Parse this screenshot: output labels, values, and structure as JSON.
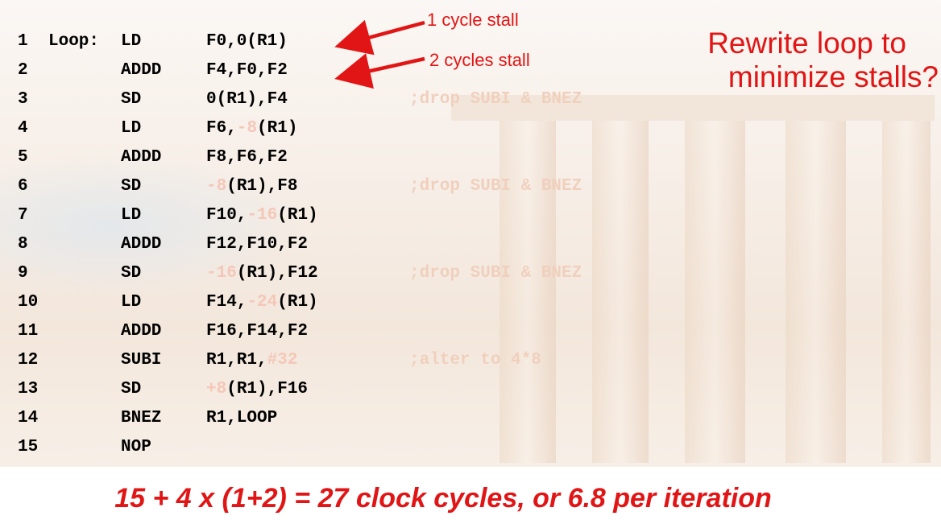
{
  "code_lines": [
    {
      "num": "1",
      "label": "Loop:",
      "op": "LD",
      "arg": [
        {
          "t": "F0,0(R1)",
          "faded": false
        }
      ],
      "comment": ""
    },
    {
      "num": "2",
      "label": "",
      "op": "ADDD",
      "arg": [
        {
          "t": "F4,F0,F2",
          "faded": false
        }
      ],
      "comment": ""
    },
    {
      "num": "3",
      "label": "",
      "op": "SD",
      "arg": [
        {
          "t": "0(R1),F4",
          "faded": false
        }
      ],
      "comment": ";drop SUBI & BNEZ"
    },
    {
      "num": "4",
      "label": "",
      "op": "LD",
      "arg": [
        {
          "t": "F6,",
          "faded": false
        },
        {
          "t": "-8",
          "faded": true
        },
        {
          "t": "(R1)",
          "faded": false
        }
      ],
      "comment": ""
    },
    {
      "num": "5",
      "label": "",
      "op": "ADDD",
      "arg": [
        {
          "t": "F8,F6,F2",
          "faded": false
        }
      ],
      "comment": ""
    },
    {
      "num": "6",
      "label": "",
      "op": "SD",
      "arg": [
        {
          "t": "-8",
          "faded": true
        },
        {
          "t": "(R1),F8",
          "faded": false
        }
      ],
      "comment": ";drop SUBI & BNEZ"
    },
    {
      "num": "7",
      "label": "",
      "op": "LD",
      "arg": [
        {
          "t": "F10,",
          "faded": false
        },
        {
          "t": "-16",
          "faded": true
        },
        {
          "t": "(R1)",
          "faded": false
        }
      ],
      "comment": ""
    },
    {
      "num": "8",
      "label": "",
      "op": "ADDD",
      "arg": [
        {
          "t": "F12,F10,F2",
          "faded": false
        }
      ],
      "comment": ""
    },
    {
      "num": "9",
      "label": "",
      "op": "SD",
      "arg": [
        {
          "t": "-16",
          "faded": true
        },
        {
          "t": "(R1),F12",
          "faded": false
        }
      ],
      "comment": ";drop SUBI & BNEZ"
    },
    {
      "num": "10",
      "label": "",
      "op": "LD",
      "arg": [
        {
          "t": "F14,",
          "faded": false
        },
        {
          "t": "-24",
          "faded": true
        },
        {
          "t": "(R1)",
          "faded": false
        }
      ],
      "comment": ""
    },
    {
      "num": "11",
      "label": "",
      "op": "ADDD",
      "arg": [
        {
          "t": "F16,F14,F2",
          "faded": false
        }
      ],
      "comment": ""
    },
    {
      "num": "12",
      "label": "",
      "op": "SUBI",
      "arg": [
        {
          "t": "R1,R1,",
          "faded": false
        },
        {
          "t": "#32",
          "faded": true
        }
      ],
      "comment": ";alter to 4*8"
    },
    {
      "num": "13",
      "label": "",
      "op": "SD",
      "arg": [
        {
          "t": "+8",
          "faded": true
        },
        {
          "t": "(R1),F16",
          "faded": false
        }
      ],
      "comment": ""
    },
    {
      "num": "14",
      "label": "",
      "op": "BNEZ",
      "arg": [
        {
          "t": "R1,LOOP",
          "faded": false
        }
      ],
      "comment": ""
    },
    {
      "num": "15",
      "label": "",
      "op": "NOP",
      "arg": [],
      "comment": ""
    }
  ],
  "annotations": {
    "stall_1": "1 cycle stall",
    "stall_2": "2 cycles stall"
  },
  "title_line1": "Rewrite loop to",
  "title_line2": "minimize stalls?",
  "summary": "15 + 4 x (1+2) = 27 clock cycles, or 6.8 per iteration",
  "colors": {
    "accent": "#e11515",
    "code": "#000000",
    "faded_text": "#f4c7b8"
  }
}
